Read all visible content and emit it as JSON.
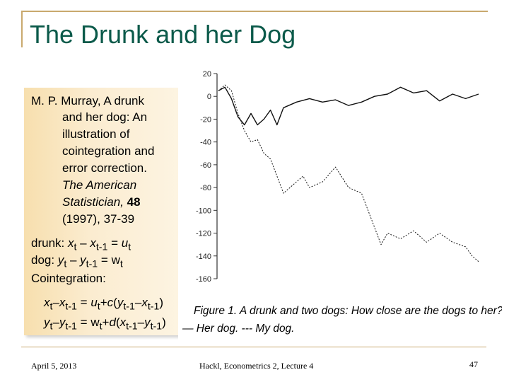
{
  "slide": {
    "title": "The Drunk and her Dog",
    "citation": {
      "line1": "M. P. Murray, A drunk",
      "line2": "and her dog: An",
      "line3": "illustration of",
      "line4": "cointegration and",
      "line5": "error correction.",
      "line6": "The American",
      "line7": "Statistician, ",
      "volume": "48",
      "line8": "(1997), 37-39"
    },
    "eq": {
      "drunk_label": "drunk: ",
      "dog_label": "dog: ",
      "x": "x",
      "y": "y",
      "u": "u",
      "w": "w",
      "t": "t",
      "t1": "t-1",
      "minus": " – ",
      "eq": " = ",
      "coint_label": "Cointegration:",
      "c": "c",
      "d": "d",
      "plus": "+",
      "lpar": "(",
      "rpar": ")",
      "dash": "–"
    }
  },
  "footer": {
    "date": "April 5, 2013",
    "course": "Hackl, Econometrics 2, Lecture 4",
    "page": "47"
  },
  "chart_data": {
    "type": "line",
    "title": "",
    "caption": "Figure 1.   A drunk and two dogs: How close are the dogs to her?",
    "caption2": "— Her dog. --- My dog.",
    "xlabel": "",
    "ylabel": "",
    "ylim": [
      -160,
      20
    ],
    "yticks": [
      20,
      0,
      -20,
      -40,
      -60,
      -80,
      -100,
      -120,
      -140,
      -160
    ],
    "x_range": [
      0,
      400
    ],
    "grid": false,
    "series": [
      {
        "name": "Her dog",
        "style": "solid",
        "x": [
          0,
          10,
          20,
          30,
          40,
          50,
          60,
          70,
          80,
          90,
          100,
          120,
          140,
          160,
          180,
          200,
          220,
          240,
          260,
          280,
          300,
          320,
          340,
          360,
          380,
          400
        ],
        "values": [
          5,
          8,
          -2,
          -18,
          -25,
          -15,
          -25,
          -20,
          -12,
          -25,
          -10,
          -5,
          -2,
          -5,
          -3,
          -8,
          -5,
          0,
          2,
          8,
          3,
          5,
          -4,
          2,
          -2,
          2
        ]
      },
      {
        "name": "My dog",
        "style": "dashed",
        "x": [
          0,
          10,
          20,
          30,
          40,
          50,
          60,
          70,
          80,
          90,
          100,
          110,
          120,
          130,
          140,
          160,
          180,
          200,
          220,
          240,
          250,
          260,
          280,
          300,
          320,
          340,
          360,
          380,
          390,
          400
        ],
        "values": [
          5,
          10,
          5,
          -15,
          -30,
          -40,
          -38,
          -50,
          -55,
          -70,
          -85,
          -80,
          -75,
          -70,
          -80,
          -75,
          -62,
          -80,
          -85,
          -115,
          -130,
          -120,
          -125,
          -118,
          -128,
          -120,
          -128,
          -132,
          -140,
          -145
        ]
      }
    ]
  }
}
